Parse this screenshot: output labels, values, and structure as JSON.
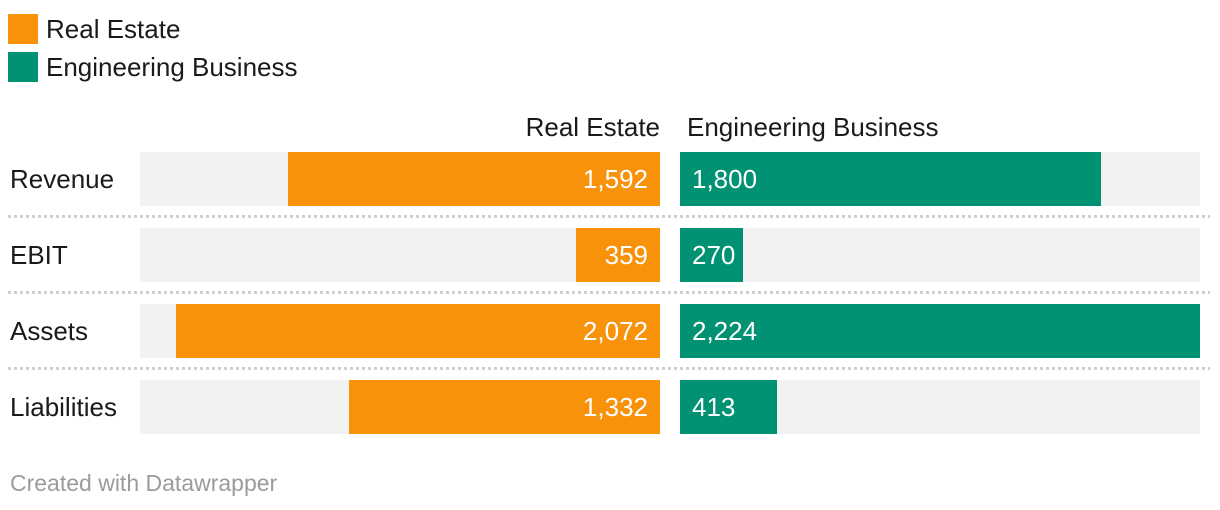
{
  "chart_data": {
    "type": "bar",
    "variant": "split-bars-comparison",
    "title": "",
    "categories": [
      "Revenue",
      "EBIT",
      "Assets",
      "Liabilities"
    ],
    "series": [
      {
        "name": "Real Estate",
        "values": [
          1592,
          359,
          2072,
          1332
        ],
        "value_labels": [
          "1,592",
          "359",
          "2,072",
          "1,332"
        ],
        "color": "#F8920B",
        "bar_alignment": "right"
      },
      {
        "name": "Engineering Business",
        "values": [
          1800,
          270,
          2224,
          413
        ],
        "value_labels": [
          "1,800",
          "270",
          "2,224",
          "413"
        ],
        "color": "#009272",
        "bar_alignment": "left"
      }
    ],
    "xmax": 2224,
    "value_labels_inside_bars": true,
    "legend_position": "top-left",
    "grid": "off",
    "row_separators": "dotted"
  },
  "legend": {
    "items": [
      {
        "label": "Real Estate",
        "color": "#F8920B"
      },
      {
        "label": "Engineering Business",
        "color": "#009272"
      }
    ]
  },
  "footer": {
    "credit": "Created with Datawrapper"
  },
  "colors": {
    "bar_orange": "#F8920B",
    "bar_teal": "#009272",
    "track": "#F2F2F2",
    "separator": "#CFCFCF",
    "label_text": "#1A1A1A",
    "value_text": "#FFFFFF",
    "credit_text": "#9B9B9B",
    "background": "#FFFFFF"
  }
}
